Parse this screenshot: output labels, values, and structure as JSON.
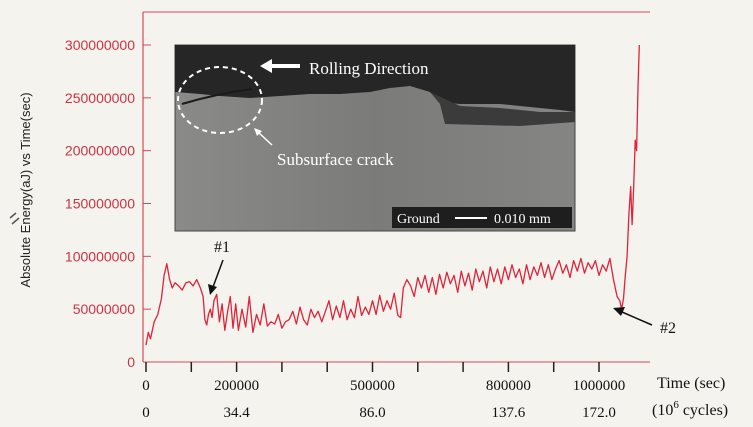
{
  "colors": {
    "background": "#f4f3ee",
    "axis_left": "#d44a5a",
    "tick_left_label": "#cc3344",
    "series": "#e0233a",
    "axis_bottom": "#222222",
    "inset_background": "#7d7d7b",
    "inset_dark": "#222222",
    "inset_text": "#ffffff"
  },
  "chart_data": {
    "type": "line",
    "title": "",
    "ylabel": "Absolute Energy(aJ) vs Time(sec)",
    "xlabel": "Time (sec)",
    "secondary_xlabel": "(10⁶ cycles)",
    "secondary_xlabel_base": "(10",
    "secondary_xlabel_exp": "6",
    "secondary_xlabel_tail": " cycles)",
    "xlim": [
      0,
      1140000
    ],
    "ylim": [
      0,
      320000000
    ],
    "grid": false,
    "y_ticks": [
      0,
      50000000,
      100000000,
      150000000,
      200000000,
      250000000,
      300000000
    ],
    "y_tick_labels": [
      "0",
      "50000000",
      "100000000",
      "150000000",
      "200000000",
      "250000000",
      "300000000"
    ],
    "x_tick_labels": [
      {
        "x": 0,
        "label": "0"
      },
      {
        "x": 200000,
        "label": "200000"
      },
      {
        "x": 500000,
        "label": "500000"
      },
      {
        "x": 800000,
        "label": "800000"
      },
      {
        "x": 1000000,
        "label": "1000000"
      }
    ],
    "x_minor_ticks": [
      0,
      100000,
      200000,
      300000,
      400000,
      500000,
      600000,
      700000,
      800000,
      900000,
      1000000
    ],
    "cycle_tick_labels": [
      {
        "x": 0,
        "label": "0"
      },
      {
        "x": 200000,
        "label": "34.4"
      },
      {
        "x": 500000,
        "label": "86.0"
      },
      {
        "x": 800000,
        "label": "137.6"
      },
      {
        "x": 1000000,
        "label": "172.0"
      }
    ],
    "annotations": [
      {
        "label": "#1",
        "x": 145000,
        "y": 58000000
      },
      {
        "label": "#2",
        "x": 1052000,
        "y": 52000000
      }
    ],
    "series": [
      {
        "points": [
          [
            0,
            16000000
          ],
          [
            5000,
            28000000
          ],
          [
            10000,
            22000000
          ],
          [
            18000,
            38000000
          ],
          [
            26000,
            45000000
          ],
          [
            34000,
            60000000
          ],
          [
            40000,
            82000000
          ],
          [
            46000,
            93000000
          ],
          [
            52000,
            78000000
          ],
          [
            58000,
            70000000
          ],
          [
            64000,
            75000000
          ],
          [
            72000,
            72000000
          ],
          [
            80000,
            68000000
          ],
          [
            88000,
            75000000
          ],
          [
            96000,
            76000000
          ],
          [
            104000,
            72000000
          ],
          [
            112000,
            78000000
          ],
          [
            120000,
            70000000
          ],
          [
            126000,
            62000000
          ],
          [
            130000,
            40000000
          ],
          [
            134000,
            35000000
          ],
          [
            138000,
            45000000
          ],
          [
            142000,
            50000000
          ],
          [
            146000,
            42000000
          ],
          [
            150000,
            58000000
          ],
          [
            156000,
            64000000
          ],
          [
            162000,
            38000000
          ],
          [
            168000,
            55000000
          ],
          [
            174000,
            30000000
          ],
          [
            180000,
            47000000
          ],
          [
            186000,
            62000000
          ],
          [
            192000,
            32000000
          ],
          [
            198000,
            55000000
          ],
          [
            204000,
            30000000
          ],
          [
            212000,
            50000000
          ],
          [
            220000,
            33000000
          ],
          [
            228000,
            62000000
          ],
          [
            236000,
            28000000
          ],
          [
            244000,
            45000000
          ],
          [
            252000,
            35000000
          ],
          [
            260000,
            55000000
          ],
          [
            268000,
            34000000
          ],
          [
            276000,
            38000000
          ],
          [
            284000,
            36000000
          ],
          [
            292000,
            45000000
          ],
          [
            300000,
            32000000
          ],
          [
            308000,
            38000000
          ],
          [
            316000,
            40000000
          ],
          [
            324000,
            48000000
          ],
          [
            332000,
            36000000
          ],
          [
            340000,
            52000000
          ],
          [
            348000,
            40000000
          ],
          [
            356000,
            35000000
          ],
          [
            364000,
            50000000
          ],
          [
            372000,
            42000000
          ],
          [
            380000,
            48000000
          ],
          [
            388000,
            38000000
          ],
          [
            396000,
            48000000
          ],
          [
            404000,
            58000000
          ],
          [
            412000,
            40000000
          ],
          [
            420000,
            53000000
          ],
          [
            428000,
            42000000
          ],
          [
            436000,
            58000000
          ],
          [
            444000,
            40000000
          ],
          [
            452000,
            50000000
          ],
          [
            460000,
            42000000
          ],
          [
            468000,
            62000000
          ],
          [
            476000,
            44000000
          ],
          [
            484000,
            52000000
          ],
          [
            492000,
            45000000
          ],
          [
            500000,
            58000000
          ],
          [
            508000,
            45000000
          ],
          [
            516000,
            63000000
          ],
          [
            524000,
            48000000
          ],
          [
            532000,
            58000000
          ],
          [
            540000,
            50000000
          ],
          [
            548000,
            65000000
          ],
          [
            556000,
            44000000
          ],
          [
            562000,
            42000000
          ],
          [
            568000,
            70000000
          ],
          [
            576000,
            78000000
          ],
          [
            584000,
            72000000
          ],
          [
            592000,
            62000000
          ],
          [
            600000,
            80000000
          ],
          [
            608000,
            70000000
          ],
          [
            616000,
            82000000
          ],
          [
            624000,
            66000000
          ],
          [
            632000,
            80000000
          ],
          [
            640000,
            64000000
          ],
          [
            648000,
            83000000
          ],
          [
            656000,
            70000000
          ],
          [
            664000,
            85000000
          ],
          [
            672000,
            74000000
          ],
          [
            680000,
            82000000
          ],
          [
            688000,
            66000000
          ],
          [
            696000,
            86000000
          ],
          [
            704000,
            72000000
          ],
          [
            712000,
            84000000
          ],
          [
            720000,
            68000000
          ],
          [
            728000,
            88000000
          ],
          [
            736000,
            76000000
          ],
          [
            744000,
            86000000
          ],
          [
            752000,
            70000000
          ],
          [
            760000,
            90000000
          ],
          [
            768000,
            76000000
          ],
          [
            776000,
            88000000
          ],
          [
            784000,
            74000000
          ],
          [
            792000,
            90000000
          ],
          [
            800000,
            78000000
          ],
          [
            808000,
            92000000
          ],
          [
            816000,
            80000000
          ],
          [
            824000,
            88000000
          ],
          [
            832000,
            74000000
          ],
          [
            840000,
            92000000
          ],
          [
            848000,
            78000000
          ],
          [
            856000,
            90000000
          ],
          [
            864000,
            82000000
          ],
          [
            872000,
            94000000
          ],
          [
            880000,
            80000000
          ],
          [
            888000,
            92000000
          ],
          [
            896000,
            78000000
          ],
          [
            904000,
            88000000
          ],
          [
            912000,
            96000000
          ],
          [
            920000,
            84000000
          ],
          [
            928000,
            92000000
          ],
          [
            936000,
            80000000
          ],
          [
            944000,
            96000000
          ],
          [
            952000,
            86000000
          ],
          [
            960000,
            98000000
          ],
          [
            968000,
            84000000
          ],
          [
            976000,
            94000000
          ],
          [
            984000,
            88000000
          ],
          [
            992000,
            96000000
          ],
          [
            1000000,
            82000000
          ],
          [
            1008000,
            92000000
          ],
          [
            1016000,
            86000000
          ],
          [
            1024000,
            98000000
          ],
          [
            1032000,
            78000000
          ],
          [
            1040000,
            62000000
          ],
          [
            1046000,
            58000000
          ],
          [
            1050000,
            50000000
          ],
          [
            1054000,
            60000000
          ],
          [
            1058000,
            82000000
          ],
          [
            1062000,
            100000000
          ],
          [
            1066000,
            140000000
          ],
          [
            1070000,
            166000000
          ],
          [
            1073000,
            130000000
          ],
          [
            1076000,
            158000000
          ],
          [
            1080000,
            210000000
          ],
          [
            1083000,
            200000000
          ],
          [
            1086000,
            260000000
          ],
          [
            1089000,
            300000000
          ]
        ]
      }
    ]
  },
  "inset": {
    "rolling_direction": "Rolling Direction",
    "crack_label": "Subsurface crack",
    "ground_label": "Ground",
    "scale_label": "0.010 mm"
  }
}
